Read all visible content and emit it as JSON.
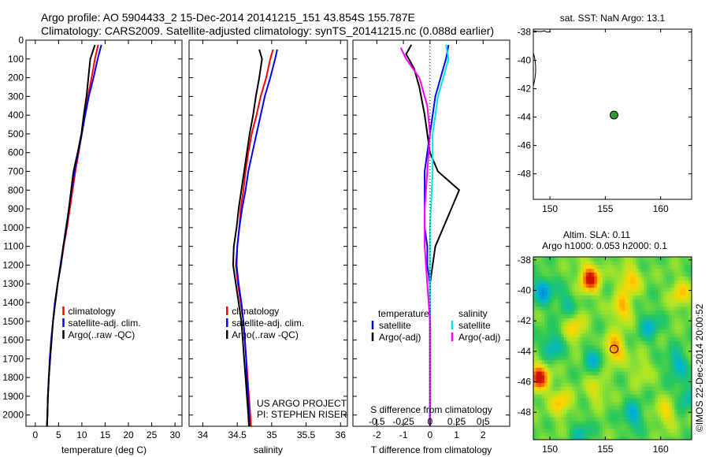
{
  "header": {
    "line1": "Argo profile: AO 5904433_2 15-Dec-2014 20141215_151 43.854S 155.787E",
    "line2": "Climatology: CARS2009. Satellite-adjusted climatology: synTS_20141215.nc (0.088d earlier)"
  },
  "colors": {
    "climatology": "#ff0000",
    "satellite": "#0000ff",
    "argo": "#000000",
    "sal_satellite": "#00e5e5",
    "sal_argo": "#ff00ff"
  },
  "credits": {
    "project": "US ARGO PROJECT",
    "pi": "PI: STEPHEN RISER",
    "imos": "©IMOS 22-Dec-2014 20:00:52"
  },
  "chart_data": [
    {
      "type": "line",
      "xlabel": "temperature (deg C)",
      "xlim": [
        -2,
        31.5
      ],
      "xticks": [
        0,
        5,
        10,
        15,
        20,
        25,
        30
      ],
      "ylim": [
        2060,
        0
      ],
      "yticks": [
        0,
        100,
        200,
        300,
        400,
        500,
        600,
        700,
        800,
        900,
        1000,
        1100,
        1200,
        1300,
        1400,
        1500,
        1600,
        1700,
        1800,
        1900,
        2000
      ],
      "legend": [
        "climatology",
        "satellite-adj. clim.",
        "Argo(..raw -QC)"
      ],
      "series": [
        {
          "name": "climatology",
          "color": "#ff0000",
          "points": [
            [
              13.5,
              25
            ],
            [
              12.8,
              100
            ],
            [
              12.1,
              200
            ],
            [
              11.3,
              300
            ],
            [
              10.6,
              400
            ],
            [
              10.0,
              500
            ],
            [
              9.3,
              600
            ],
            [
              8.6,
              700
            ],
            [
              8.0,
              800
            ],
            [
              7.4,
              900
            ],
            [
              6.8,
              1000
            ],
            [
              6.1,
              1100
            ],
            [
              5.5,
              1200
            ],
            [
              4.8,
              1300
            ],
            [
              4.3,
              1400
            ],
            [
              3.8,
              1500
            ],
            [
              3.5,
              1600
            ],
            [
              3.2,
              1700
            ],
            [
              2.9,
              1800
            ],
            [
              2.7,
              1900
            ],
            [
              2.6,
              2000
            ],
            [
              2.5,
              2060
            ]
          ]
        },
        {
          "name": "satellite-adj. clim.",
          "color": "#0000ff",
          "points": [
            [
              14.2,
              25
            ],
            [
              13.4,
              100
            ],
            [
              12.5,
              200
            ],
            [
              11.5,
              300
            ],
            [
              10.7,
              400
            ],
            [
              10.0,
              500
            ],
            [
              9.2,
              600
            ],
            [
              8.4,
              700
            ],
            [
              7.8,
              800
            ],
            [
              7.2,
              900
            ],
            [
              6.6,
              1000
            ],
            [
              6.0,
              1100
            ],
            [
              5.4,
              1200
            ],
            [
              4.8,
              1300
            ],
            [
              4.2,
              1400
            ],
            [
              3.8,
              1500
            ],
            [
              3.4,
              1600
            ],
            [
              3.1,
              1700
            ],
            [
              2.9,
              1800
            ],
            [
              2.7,
              1900
            ],
            [
              2.6,
              2000
            ],
            [
              2.5,
              2060
            ]
          ]
        },
        {
          "name": "Argo(..raw -QC)",
          "color": "#000000",
          "points": [
            [
              12.8,
              25
            ],
            [
              11.8,
              100
            ],
            [
              11.4,
              200
            ],
            [
              11.0,
              300
            ],
            [
              10.4,
              400
            ],
            [
              9.9,
              500
            ],
            [
              9.1,
              600
            ],
            [
              8.2,
              700
            ],
            [
              7.7,
              800
            ],
            [
              7.2,
              900
            ],
            [
              6.7,
              1000
            ],
            [
              6.0,
              1100
            ],
            [
              5.5,
              1200
            ],
            [
              4.8,
              1300
            ],
            [
              4.3,
              1400
            ],
            [
              3.8,
              1500
            ],
            [
              3.5,
              1600
            ],
            [
              3.2,
              1700
            ],
            [
              2.9,
              1800
            ],
            [
              2.7,
              1900
            ],
            [
              2.6,
              2000
            ],
            [
              2.5,
              2060
            ]
          ]
        }
      ]
    },
    {
      "type": "line",
      "xlabel": "salinity",
      "xlim": [
        33.8,
        36.1
      ],
      "xticks": [
        34,
        34.5,
        35,
        35.5,
        36
      ],
      "ylim": [
        2060,
        0
      ],
      "legend": [
        "climatology",
        "satellite-adj. clim.",
        "Argo(..raw -QC)"
      ],
      "series": [
        {
          "name": "climatology",
          "color": "#ff0000",
          "points": [
            [
              35.02,
              50
            ],
            [
              34.98,
              100
            ],
            [
              34.92,
              200
            ],
            [
              34.84,
              300
            ],
            [
              34.78,
              400
            ],
            [
              34.71,
              500
            ],
            [
              34.66,
              600
            ],
            [
              34.62,
              700
            ],
            [
              34.59,
              800
            ],
            [
              34.55,
              900
            ],
            [
              34.53,
              1000
            ],
            [
              34.5,
              1100
            ],
            [
              34.48,
              1200
            ],
            [
              34.51,
              1300
            ],
            [
              34.55,
              1400
            ],
            [
              34.59,
              1500
            ],
            [
              34.61,
              1600
            ],
            [
              34.63,
              1700
            ],
            [
              34.65,
              1800
            ],
            [
              34.67,
              1900
            ],
            [
              34.69,
              2000
            ],
            [
              34.7,
              2060
            ]
          ]
        },
        {
          "name": "satellite-adj. clim.",
          "color": "#0000ff",
          "points": [
            [
              35.08,
              50
            ],
            [
              35.05,
              100
            ],
            [
              34.98,
              200
            ],
            [
              34.9,
              300
            ],
            [
              34.84,
              400
            ],
            [
              34.78,
              500
            ],
            [
              34.72,
              600
            ],
            [
              34.66,
              700
            ],
            [
              34.62,
              800
            ],
            [
              34.57,
              900
            ],
            [
              34.53,
              1000
            ],
            [
              34.5,
              1100
            ],
            [
              34.49,
              1200
            ],
            [
              34.52,
              1300
            ],
            [
              34.56,
              1400
            ],
            [
              34.59,
              1500
            ],
            [
              34.61,
              1600
            ],
            [
              34.63,
              1700
            ],
            [
              34.64,
              1800
            ],
            [
              34.66,
              1900
            ],
            [
              34.67,
              2000
            ],
            [
              34.68,
              2060
            ]
          ]
        },
        {
          "name": "Argo(..raw -QC)",
          "color": "#000000",
          "points": [
            [
              34.82,
              50
            ],
            [
              34.86,
              100
            ],
            [
              34.82,
              200
            ],
            [
              34.77,
              300
            ],
            [
              34.73,
              400
            ],
            [
              34.68,
              500
            ],
            [
              34.64,
              600
            ],
            [
              34.6,
              700
            ],
            [
              34.56,
              800
            ],
            [
              34.52,
              900
            ],
            [
              34.49,
              1000
            ],
            [
              34.45,
              1100
            ],
            [
              34.44,
              1200
            ],
            [
              34.48,
              1300
            ],
            [
              34.52,
              1400
            ],
            [
              34.56,
              1500
            ],
            [
              34.58,
              1600
            ],
            [
              34.6,
              1700
            ],
            [
              34.62,
              1800
            ],
            [
              34.64,
              1900
            ],
            [
              34.66,
              2000
            ],
            [
              34.67,
              2060
            ]
          ]
        }
      ]
    },
    {
      "type": "line",
      "xlabel": "T difference from climatology",
      "xlabel_top": "S difference from climatology",
      "xlim": [
        -2.9,
        3
      ],
      "xticks": [
        -2,
        -1,
        0,
        1,
        2
      ],
      "xticks_top": [
        "-0.5",
        "-0.25",
        "0",
        "0.25",
        "0.5"
      ],
      "xticks_top_pos": [
        -2,
        -1,
        0,
        1,
        2
      ],
      "ylim": [
        2060,
        0
      ],
      "legend_headers": [
        "temperature",
        "salinity"
      ],
      "legend": [
        "satellite",
        "Argo(-adj)",
        "satellite",
        "Argo(-adj)"
      ],
      "series": [
        {
          "name": "satellite",
          "group": "temperature",
          "color": "#0000ff",
          "points": [
            [
              0.7,
              25
            ],
            [
              0.6,
              100
            ],
            [
              0.4,
              200
            ],
            [
              0.2,
              300
            ],
            [
              0.1,
              400
            ],
            [
              0.0,
              500
            ],
            [
              -0.1,
              600
            ],
            [
              -0.2,
              700
            ],
            [
              -0.2,
              800
            ],
            [
              -0.2,
              900
            ],
            [
              -0.2,
              1000
            ],
            [
              -0.1,
              1100
            ],
            [
              -0.1,
              1200
            ],
            [
              0.0,
              1300
            ],
            [
              0.0,
              1400
            ],
            [
              0.0,
              1500
            ],
            [
              0.0,
              1700
            ],
            [
              0.0,
              2000
            ],
            [
              0.0,
              2060
            ]
          ]
        },
        {
          "name": "Argo(-adj)",
          "group": "temperature",
          "color": "#000000",
          "points": [
            [
              -0.7,
              25
            ],
            [
              -0.9,
              75
            ],
            [
              -0.6,
              150
            ],
            [
              -0.4,
              250
            ],
            [
              -0.2,
              400
            ],
            [
              0.0,
              600
            ],
            [
              0.3,
              700
            ],
            [
              1.1,
              800
            ],
            [
              0.8,
              900
            ],
            [
              0.5,
              1000
            ],
            [
              0.2,
              1100
            ],
            [
              0.1,
              1200
            ],
            [
              0.0,
              1300
            ],
            [
              0.0,
              1500
            ],
            [
              0.0,
              2060
            ]
          ]
        },
        {
          "name": "satellite",
          "group": "salinity",
          "color": "#00e5e5",
          "points": [
            [
              0.6,
              25
            ],
            [
              0.7,
              100
            ],
            [
              0.5,
              200
            ],
            [
              0.3,
              300
            ],
            [
              0.2,
              400
            ],
            [
              0.1,
              500
            ],
            [
              0.1,
              700
            ],
            [
              0.0,
              1000
            ],
            [
              0.0,
              1500
            ],
            [
              0.0,
              2060
            ]
          ]
        },
        {
          "name": "Argo(-adj)",
          "group": "salinity",
          "color": "#ff00ff",
          "points": [
            [
              -1.1,
              40
            ],
            [
              -0.9,
              100
            ],
            [
              -0.4,
              200
            ],
            [
              -0.1,
              350
            ],
            [
              0.0,
              500
            ],
            [
              -0.1,
              700
            ],
            [
              -0.2,
              900
            ],
            [
              -0.2,
              1100
            ],
            [
              -0.1,
              1300
            ],
            [
              0.0,
              1500
            ],
            [
              0.0,
              1800
            ],
            [
              0.0,
              2060
            ]
          ]
        }
      ]
    },
    {
      "type": "scatter",
      "title": "sat. SST: NaN Argo: 13.1",
      "xlim": [
        148.5,
        162.8
      ],
      "ylim": [
        -49.8,
        -37.8
      ],
      "xticks": [
        150,
        155,
        160
      ],
      "yticks": [
        -38,
        -40,
        -42,
        -44,
        -46,
        -48
      ],
      "points": [
        {
          "x": 155.787,
          "y": -43.854
        }
      ]
    },
    {
      "type": "heatmap",
      "title_lines": [
        "Altim. SLA: 0.11",
        "Argo h1000: 0.053 h2000: 0.1"
      ],
      "xlim": [
        148.5,
        162.8
      ],
      "ylim": [
        -49.8,
        -37.8
      ],
      "xticks": [
        150,
        155,
        160
      ],
      "yticks": [
        -38,
        -40,
        -42,
        -44,
        -46,
        -48
      ],
      "float_position": {
        "x": 155.787,
        "y": -43.854
      },
      "anomaly_blobs": [
        {
          "x": 153.6,
          "y": -39.2,
          "v": 1.0
        },
        {
          "x": 157.2,
          "y": -39.3,
          "v": 0.6
        },
        {
          "x": 156.5,
          "y": -41.2,
          "v": 0.6
        },
        {
          "x": 152.3,
          "y": -42.5,
          "v": 0.5
        },
        {
          "x": 155.8,
          "y": -43.8,
          "v": 0.75
        },
        {
          "x": 149.0,
          "y": -45.7,
          "v": 1.0
        },
        {
          "x": 151.0,
          "y": -47.4,
          "v": 0.55
        },
        {
          "x": 154.2,
          "y": -46.5,
          "v": 0.4
        },
        {
          "x": 161.8,
          "y": -40.2,
          "v": 0.5
        },
        {
          "x": 160.5,
          "y": -48.0,
          "v": 0.45
        },
        {
          "x": 158.2,
          "y": -45.2,
          "v": 0.3
        },
        {
          "x": 149.4,
          "y": -40.0,
          "v": -0.6
        },
        {
          "x": 150.2,
          "y": -43.6,
          "v": -0.5
        },
        {
          "x": 154.0,
          "y": -44.4,
          "v": -0.45
        },
        {
          "x": 159.0,
          "y": -42.3,
          "v": -0.45
        },
        {
          "x": 161.5,
          "y": -44.8,
          "v": -0.5
        },
        {
          "x": 157.5,
          "y": -48.2,
          "v": -0.5
        },
        {
          "x": 151.5,
          "y": -40.8,
          "v": -0.3
        },
        {
          "x": 152.8,
          "y": -49.3,
          "v": -0.35
        },
        {
          "x": 162.3,
          "y": -47.0,
          "v": -0.4
        }
      ]
    }
  ]
}
